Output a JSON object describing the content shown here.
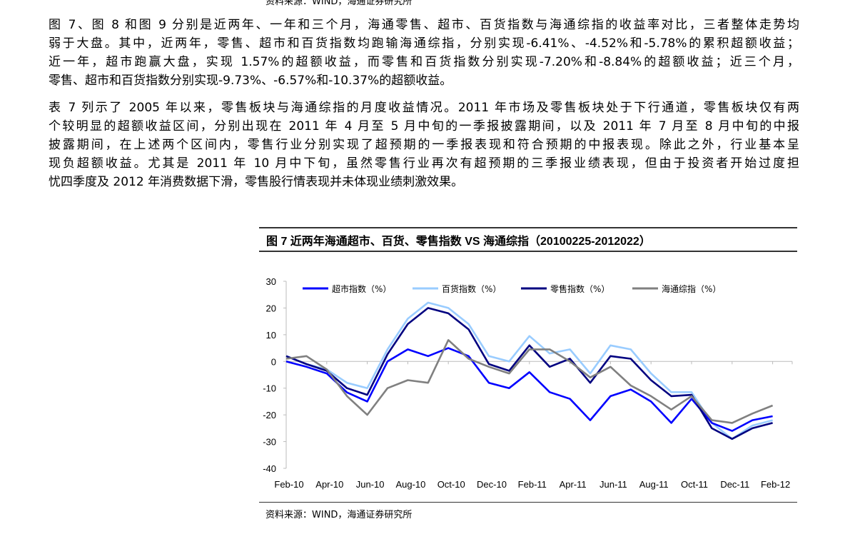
{
  "top_source_clipped": "资料来源：WIND，海通证券研究所",
  "paragraph1": [
    "图 7、图 8 和图 9 分别是近两年、一年和三个月，海通零售、超市、百货指数与海通综指的收益率对比，三者整体走势均",
    "弱于大盘。其中，近两年，零售、超市和百货指数均跑输海通综指，分别实现-6.41%、-4.52%和-5.78%的累积超额收益；",
    "近一年，超市跑赢大盘，实现 1.57%的超额收益，而零售和百货指数分别实现-7.20%和-8.84%的超额收益；近三个月，",
    "零售、超市和百货指数分别实现-9.73%、-6.57%和-10.37%的超额收益。"
  ],
  "paragraph2": [
    "表 7 列示了 2005 年以来，零售板块与海通综指的月度收益情况。2011 年市场及零售板块处于下行通道，零售板块仅有两",
    "个较明显的超额收益区间，分别出现在 2011 年 4 月至 5 月中旬的一季报披露期间，以及 2011 年 7 月至 8 月中旬的中报",
    "披露期间，在上述两个区间内，零售行业分别实现了超预期的一季报表现和符合预期的中报表现。除此之外，行业基本呈",
    "现负超额收益。尤其是 2011 年 10 月中下旬，虽然零售行业再次有超预期的三季报业绩表现，但由于投资者开始过度担",
    "忧四季度及 2012 年消费数据下滑，零售股行情表现并未体现业绩刺激效果。"
  ],
  "figure": {
    "title": "图 7  近两年海通超市、百货、零售指数 VS 海通综指（20100225-2012022）",
    "source": "资料来源：WIND，海通证券研究所"
  },
  "chart_data": {
    "type": "line",
    "title": "图 7  近两年海通超市、百货、零售指数 VS 海通综指（20100225-2012022）",
    "xlabel": "",
    "ylabel": "",
    "ylim": [
      -40,
      30
    ],
    "yticks": [
      "30",
      "20",
      "10",
      "0",
      "-10",
      "-20",
      "-30",
      "-40"
    ],
    "xticks": [
      "Feb-10",
      "Apr-10",
      "Jun-10",
      "Aug-10",
      "Oct-10",
      "Dec-10",
      "Feb-11",
      "Apr-11",
      "Jun-11",
      "Aug-11",
      "Oct-11",
      "Dec-11",
      "Feb-12"
    ],
    "x": [
      "2010-02",
      "2010-03",
      "2010-04",
      "2010-05",
      "2010-06",
      "2010-07",
      "2010-08",
      "2010-09",
      "2010-10",
      "2010-11",
      "2010-12",
      "2011-01",
      "2011-02",
      "2011-03",
      "2011-04",
      "2011-05",
      "2011-06",
      "2011-07",
      "2011-08",
      "2011-09",
      "2011-10",
      "2011-11",
      "2011-12",
      "2012-01",
      "2012-02"
    ],
    "legend_position": "top",
    "grid": false,
    "series": [
      {
        "name": "超市指数（%）",
        "color": "#0000ff",
        "values": [
          0,
          -2,
          -4.5,
          -11.6,
          -15,
          0,
          4.5,
          2,
          5,
          2,
          -8,
          -10,
          -4,
          -11.5,
          -14,
          -22,
          -13,
          -10.5,
          -15,
          -23,
          -14,
          -23,
          -26,
          -22,
          -20.5
        ]
      },
      {
        "name": "百货指数（%）",
        "color": "#99ccff",
        "values": [
          2,
          -1,
          -3,
          -8,
          -10,
          4.5,
          16,
          22,
          20,
          14,
          2,
          0,
          9.5,
          3,
          4.5,
          -4.5,
          6,
          4.5,
          -4.5,
          -11.5,
          -11.5,
          -23,
          -29,
          -24,
          -22
        ]
      },
      {
        "name": "零售指数（%）",
        "color": "#000080",
        "values": [
          2,
          -1,
          -3.5,
          -10,
          -12.5,
          2.7,
          14,
          20,
          18,
          12,
          -1,
          -3.5,
          6,
          -2,
          1,
          -8,
          2,
          1,
          -7,
          -13,
          -12.5,
          -25,
          -29,
          -25,
          -23
        ]
      },
      {
        "name": "海通综指（%）",
        "color": "#808080",
        "values": [
          1,
          2,
          -3,
          -13,
          -20,
          -10,
          -7,
          -8,
          8,
          1,
          -2,
          -4.5,
          4.5,
          4.5,
          0,
          -6,
          -2,
          -9,
          -13,
          -18,
          -13,
          -22,
          -23,
          -19.5,
          -16.5
        ]
      }
    ]
  }
}
